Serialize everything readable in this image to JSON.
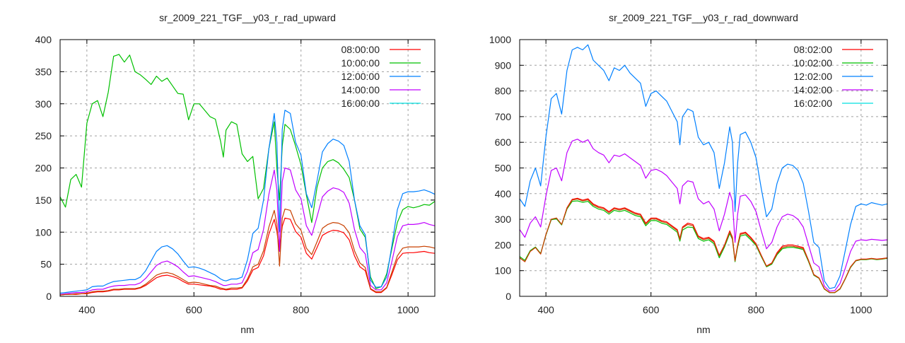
{
  "chart_data": [
    {
      "type": "line",
      "title": "sr_2009_221_TGF__y03_r_rad_upward",
      "xlabel": "nm",
      "ylabel": "",
      "xlim": [
        350,
        1050
      ],
      "ylim": [
        0,
        400
      ],
      "xticks": [
        400,
        600,
        800,
        1000
      ],
      "yticks": [
        0,
        50,
        100,
        150,
        200,
        250,
        300,
        350,
        400
      ],
      "grid": true,
      "legend": "top-right",
      "x": [
        350,
        360,
        370,
        380,
        390,
        400,
        410,
        420,
        430,
        440,
        450,
        460,
        470,
        480,
        490,
        500,
        510,
        520,
        530,
        540,
        550,
        560,
        570,
        580,
        590,
        600,
        610,
        620,
        630,
        640,
        650,
        655,
        660,
        670,
        680,
        690,
        700,
        710,
        720,
        730,
        740,
        750,
        755,
        760,
        765,
        770,
        780,
        790,
        800,
        810,
        820,
        830,
        840,
        850,
        860,
        870,
        880,
        890,
        900,
        910,
        920,
        930,
        940,
        950,
        960,
        970,
        980,
        990,
        1000,
        1010,
        1020,
        1030,
        1040,
        1050
      ],
      "series": [
        {
          "name": "08:00:00",
          "color": "#ff0000",
          "line_color": "#ff0000",
          "values": [
            2,
            3,
            3,
            3,
            4,
            4,
            6,
            7,
            7,
            8,
            10,
            10,
            11,
            11,
            11,
            13,
            17,
            23,
            29,
            32,
            33,
            31,
            28,
            23,
            19,
            19,
            18,
            17,
            16,
            14,
            11,
            11,
            10,
            11,
            11,
            13,
            24,
            41,
            45,
            63,
            97,
            120,
            101,
            70,
            109,
            122,
            120,
            101,
            92,
            67,
            58,
            76,
            95,
            100,
            103,
            102,
            99,
            88,
            63,
            46,
            40,
            11,
            6,
            6,
            13,
            34,
            57,
            67,
            68,
            68,
            69,
            70,
            68,
            67
          ]
        },
        {
          "name": "10:00:00",
          "color": "#00c000",
          "line_color": "#00c000",
          "values": [
            155,
            139,
            182,
            190,
            170,
            270,
            300,
            305,
            280,
            318,
            374,
            377,
            365,
            376,
            350,
            345,
            338,
            330,
            343,
            335,
            340,
            328,
            316,
            315,
            275,
            300,
            300,
            290,
            280,
            276,
            241,
            217,
            259,
            272,
            268,
            222,
            210,
            218,
            152,
            168,
            230,
            272,
            200,
            150,
            234,
            268,
            260,
            234,
            205,
            158,
            115,
            170,
            200,
            210,
            213,
            208,
            198,
            185,
            150,
            105,
            92,
            30,
            12,
            15,
            35,
            75,
            115,
            135,
            140,
            138,
            140,
            143,
            142,
            148
          ]
        },
        {
          "name": "12:00:00",
          "color": "#0080ff",
          "line_color": "#0080ff",
          "values": [
            5,
            6,
            7,
            8,
            9,
            10,
            15,
            16,
            16,
            20,
            23,
            24,
            25,
            26,
            26,
            30,
            40,
            55,
            70,
            77,
            79,
            74,
            66,
            55,
            45,
            46,
            44,
            41,
            37,
            33,
            27,
            25,
            24,
            27,
            27,
            30,
            57,
            98,
            106,
            150,
            230,
            285,
            240,
            101,
            260,
            290,
            285,
            240,
            220,
            160,
            138,
            180,
            225,
            238,
            245,
            242,
            235,
            210,
            150,
            110,
            96,
            25,
            14,
            15,
            30,
            80,
            135,
            160,
            163,
            163,
            164,
            166,
            163,
            159
          ]
        },
        {
          "name": "14:00:00",
          "color": "#c000ff",
          "line_color": "#c000ff",
          "values": [
            3,
            4,
            5,
            6,
            6,
            7,
            10,
            11,
            11,
            14,
            16,
            17,
            17,
            18,
            18,
            21,
            28,
            38,
            48,
            53,
            55,
            51,
            46,
            38,
            31,
            32,
            30,
            28,
            26,
            23,
            19,
            17,
            17,
            19,
            19,
            21,
            39,
            68,
            73,
            104,
            159,
            197,
            166,
            70,
            179,
            200,
            197,
            166,
            152,
            110,
            95,
            124,
            155,
            164,
            169,
            167,
            162,
            145,
            104,
            76,
            66,
            17,
            10,
            10,
            21,
            55,
            93,
            110,
            112,
            112,
            113,
            115,
            112,
            110
          ]
        },
        {
          "name": "16:00:00",
          "color": "#00e0e0",
          "line_color": "#c84000",
          "values": [
            2,
            3,
            3,
            4,
            4,
            5,
            7,
            8,
            8,
            9,
            11,
            11,
            12,
            12,
            12,
            14,
            19,
            26,
            33,
            36,
            37,
            35,
            31,
            26,
            21,
            22,
            21,
            19,
            17,
            16,
            13,
            12,
            11,
            13,
            13,
            14,
            27,
            46,
            50,
            71,
            108,
            134,
            113,
            47,
            122,
            136,
            134,
            113,
            103,
            75,
            65,
            85,
            106,
            112,
            115,
            114,
            110,
            99,
            71,
            52,
            45,
            12,
            7,
            7,
            14,
            38,
            63,
            75,
            77,
            77,
            77,
            78,
            77,
            75
          ]
        }
      ]
    },
    {
      "type": "line",
      "title": "sr_2009_221_TGF__y03_r_rad_downward",
      "xlabel": "nm",
      "ylabel": "",
      "xlim": [
        350,
        1050
      ],
      "ylim": [
        0,
        1000
      ],
      "xticks": [
        400,
        600,
        800,
        1000
      ],
      "yticks": [
        0,
        100,
        200,
        300,
        400,
        500,
        600,
        700,
        800,
        900,
        1000
      ],
      "grid": true,
      "legend": "top-right",
      "x": [
        350,
        360,
        370,
        380,
        390,
        400,
        410,
        420,
        430,
        440,
        450,
        460,
        470,
        480,
        490,
        500,
        510,
        520,
        530,
        540,
        550,
        560,
        570,
        580,
        590,
        600,
        610,
        620,
        630,
        640,
        650,
        655,
        660,
        670,
        680,
        690,
        700,
        710,
        720,
        730,
        740,
        750,
        755,
        760,
        765,
        770,
        780,
        790,
        800,
        810,
        820,
        830,
        840,
        850,
        860,
        870,
        880,
        890,
        900,
        910,
        920,
        930,
        940,
        950,
        960,
        970,
        980,
        990,
        1000,
        1010,
        1020,
        1030,
        1040,
        1050
      ],
      "series": [
        {
          "name": "08:02:00",
          "color": "#ff0000",
          "line_color": "#ff0000",
          "values": [
            150,
            135,
            175,
            190,
            165,
            240,
            300,
            305,
            280,
            345,
            378,
            382,
            375,
            380,
            360,
            350,
            345,
            330,
            345,
            340,
            345,
            335,
            325,
            320,
            285,
            305,
            305,
            295,
            290,
            275,
            260,
            225,
            270,
            285,
            280,
            235,
            225,
            230,
            215,
            160,
            200,
            255,
            230,
            140,
            200,
            245,
            250,
            230,
            205,
            160,
            118,
            130,
            170,
            195,
            200,
            200,
            195,
            190,
            140,
            85,
            72,
            30,
            15,
            15,
            30,
            70,
            115,
            140,
            145,
            145,
            148,
            145,
            147,
            150
          ]
        },
        {
          "name": "10:02:00",
          "color": "#00c000",
          "line_color": "#00c000",
          "values": [
            155,
            140,
            178,
            192,
            167,
            238,
            298,
            302,
            278,
            340,
            370,
            372,
            366,
            370,
            350,
            340,
            335,
            320,
            335,
            330,
            335,
            325,
            315,
            310,
            275,
            295,
            295,
            285,
            280,
            265,
            250,
            215,
            258,
            270,
            268,
            225,
            215,
            220,
            205,
            150,
            192,
            245,
            222,
            135,
            192,
            235,
            240,
            220,
            198,
            155,
            115,
            125,
            162,
            185,
            190,
            191,
            187,
            182,
            135,
            82,
            70,
            28,
            14,
            14,
            28,
            68,
            112,
            138,
            143,
            143,
            146,
            143,
            145,
            148
          ]
        },
        {
          "name": "12:02:00",
          "color": "#0080ff",
          "line_color": "#0080ff",
          "values": [
            380,
            350,
            450,
            500,
            430,
            620,
            770,
            790,
            710,
            880,
            960,
            970,
            960,
            980,
            920,
            900,
            880,
            840,
            890,
            880,
            900,
            870,
            850,
            830,
            740,
            790,
            800,
            780,
            760,
            720,
            680,
            590,
            700,
            730,
            720,
            620,
            590,
            600,
            560,
            420,
            520,
            660,
            600,
            330,
            520,
            630,
            640,
            600,
            540,
            420,
            310,
            340,
            440,
            500,
            515,
            510,
            490,
            440,
            330,
            210,
            190,
            60,
            30,
            35,
            80,
            180,
            280,
            350,
            360,
            355,
            365,
            360,
            355,
            360
          ]
        },
        {
          "name": "14:02:00",
          "color": "#c000ff",
          "line_color": "#c000ff",
          "values": [
            260,
            230,
            285,
            310,
            270,
            390,
            490,
            500,
            450,
            560,
            605,
            612,
            600,
            610,
            575,
            560,
            550,
            520,
            550,
            545,
            555,
            540,
            525,
            510,
            460,
            490,
            495,
            485,
            470,
            445,
            420,
            360,
            430,
            450,
            445,
            380,
            360,
            370,
            340,
            255,
            320,
            405,
            370,
            210,
            320,
            390,
            395,
            370,
            330,
            255,
            185,
            210,
            270,
            310,
            320,
            315,
            300,
            270,
            200,
            130,
            115,
            40,
            20,
            22,
            50,
            110,
            175,
            215,
            220,
            218,
            222,
            220,
            218,
            220
          ]
        },
        {
          "name": "16:02:00",
          "color": "#00e0e0",
          "line_color": "#c84000",
          "values": [
            150,
            135,
            175,
            190,
            165,
            240,
            300,
            305,
            280,
            343,
            375,
            379,
            372,
            376,
            356,
            346,
            341,
            326,
            341,
            336,
            341,
            331,
            321,
            316,
            281,
            301,
            301,
            291,
            286,
            271,
            256,
            221,
            266,
            280,
            275,
            231,
            221,
            226,
            211,
            157,
            197,
            251,
            226,
            138,
            197,
            241,
            246,
            226,
            202,
            158,
            117,
            128,
            166,
            190,
            195,
            195,
            191,
            186,
            138,
            84,
            71,
            29,
            15,
            15,
            29,
            69,
            114,
            139,
            144,
            144,
            147,
            144,
            146,
            149
          ]
        }
      ]
    }
  ]
}
